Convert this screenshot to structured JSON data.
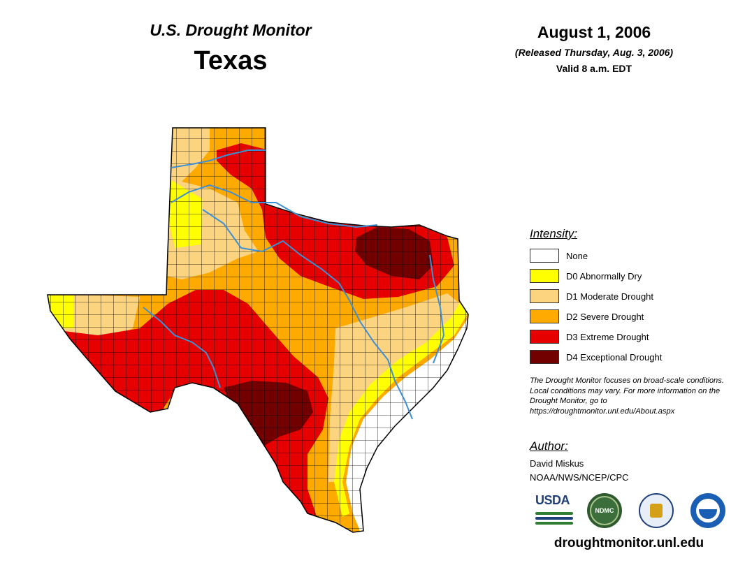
{
  "header": {
    "title": "U.S. Drought Monitor",
    "state": "Texas",
    "date": "August 1, 2006",
    "released": "(Released Thursday, Aug. 3, 2006)",
    "valid": "Valid 8 a.m. EDT"
  },
  "legend": {
    "title": "Intensity:",
    "items": [
      {
        "label": "None",
        "color": "#ffffff"
      },
      {
        "label": "D0 Abnormally Dry",
        "color": "#ffff00"
      },
      {
        "label": "D1 Moderate Drought",
        "color": "#fcd37f"
      },
      {
        "label": "D2 Severe Drought",
        "color": "#ffaa00"
      },
      {
        "label": "D3 Extreme Drought",
        "color": "#e60000"
      },
      {
        "label": "D4 Exceptional Drought",
        "color": "#730000"
      }
    ]
  },
  "note": "The Drought Monitor focuses on broad-scale conditions. Local conditions may vary. For more information on the Drought Monitor, go to https://droughtmonitor.unl.edu/About.aspx",
  "author": {
    "title": "Author:",
    "name": "David Miskus",
    "org": "NOAA/NWS/NCEP/CPC"
  },
  "logos": {
    "usda": "USDA",
    "ndmc": "NDMC",
    "noaa": "NOAA"
  },
  "footer_url": "droughtmonitor.unl.edu",
  "colors": {
    "river": "#3f8fd6",
    "county_line": "#000000"
  }
}
